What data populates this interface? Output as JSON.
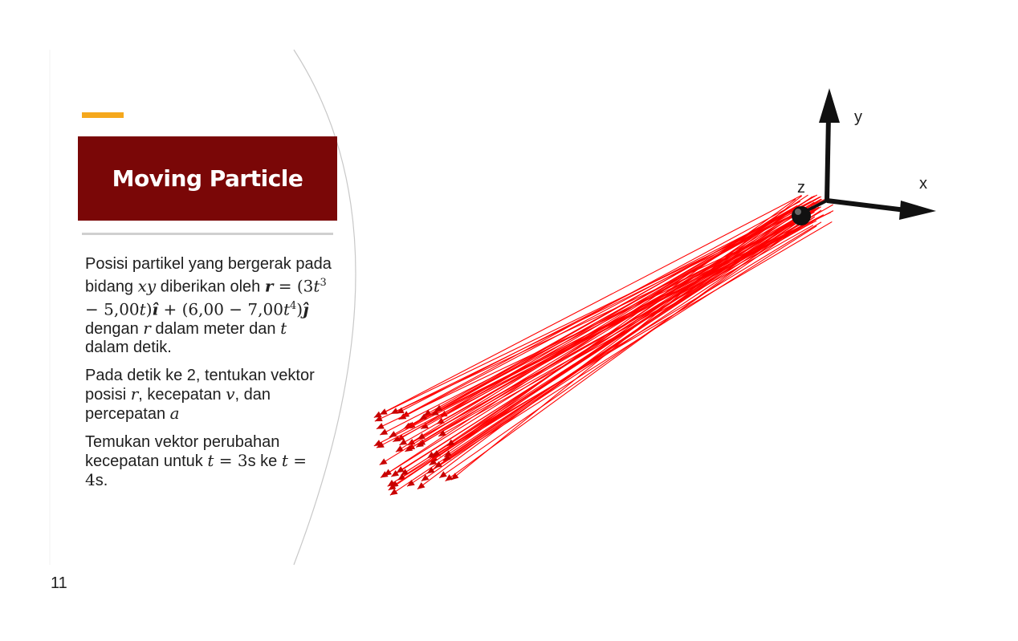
{
  "slide": {
    "title": "Moving Particle",
    "number": "11",
    "paragraphs": {
      "p1": {
        "a": "Posisi partikel yang bergerak pada bidang ",
        "xy": "xy",
        "b": " diberikan oleh ",
        "r_bold": "r",
        "eq1": " = (3",
        "t": "t",
        "exp3": "3",
        "eq2": " − 5,00",
        "eq3": ")",
        "ihat": "î",
        "eq4": " + (6,00 − 7,00",
        "exp4": "4",
        "eq5": ")",
        "jhat": "ĵ",
        "c": " dengan ",
        "r": "r",
        "d": " dalam meter dan ",
        "e": " dalam detik."
      },
      "p2": {
        "a": "Pada detik ke 2, tentukan vektor posisi ",
        "r": "r",
        "b": ", kecepatan ",
        "v": "v",
        "c": ", dan percepatan ",
        "acc": "a"
      },
      "p3": {
        "a": "Temukan vektor perubahan kecepatan untuk ",
        "t": "t",
        "eqA": " = 3",
        "s1": "s ke ",
        "eqB": " = 4",
        "s2": "s."
      }
    }
  },
  "axes": {
    "x_label": "x",
    "y_label": "y",
    "z_label": "z"
  },
  "colors": {
    "accent": "#f5a81c",
    "title_bg": "#7a0707",
    "vector": "#ff0000",
    "vector_head": "#c80000",
    "axis": "#111111"
  }
}
